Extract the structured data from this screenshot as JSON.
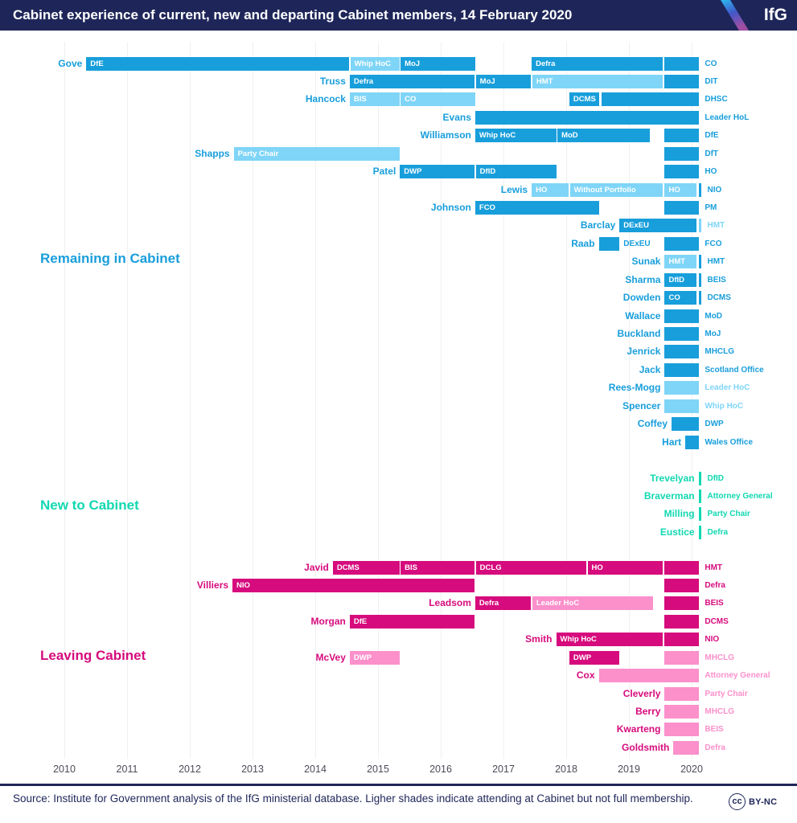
{
  "header": {
    "title": "Cabinet experience of current, new and departing Cabinet members, 14 February 2020",
    "logo_text": "IfG"
  },
  "footer": {
    "source": "Source: Institute for Government analysis of the IfG ministerial database. Ligher shades indicate attending at Cabinet but not full membership.",
    "cc_label": "cc",
    "license_label": "BY-NC"
  },
  "chart_data": {
    "type": "gantt",
    "title": "Cabinet experience of current, new and departing Cabinet members, 14 February 2020",
    "x_ticks": [
      2010,
      2011,
      2012,
      2013,
      2014,
      2015,
      2016,
      2017,
      2018,
      2019,
      2020
    ],
    "x_range": [
      2010,
      2020.3
    ],
    "grid": true,
    "groups": [
      {
        "name": "Remaining in Cabinet",
        "key": "remaining",
        "colors": {
          "dark": "#189edb",
          "light": "#7fd5f7"
        },
        "rows": [
          {
            "name": "Gove",
            "current": "CO",
            "current_shade": "dark",
            "segments": [
              {
                "label": "DfE",
                "start": 2010.35,
                "end": 2014.54,
                "shade": "dark"
              },
              {
                "label": "Whip HoC",
                "start": 2014.56,
                "end": 2015.34,
                "shade": "light"
              },
              {
                "label": "MoJ",
                "start": 2015.36,
                "end": 2016.55,
                "shade": "dark"
              },
              {
                "label": "Defra",
                "start": 2017.45,
                "end": 2019.54,
                "shade": "dark"
              },
              {
                "label": "",
                "start": 2019.57,
                "end": 2020.12,
                "shade": "dark"
              }
            ]
          },
          {
            "name": "Truss",
            "current": "DIT",
            "current_shade": "dark",
            "segments": [
              {
                "label": "Defra",
                "start": 2014.55,
                "end": 2016.54,
                "shade": "dark"
              },
              {
                "label": "MoJ",
                "start": 2016.56,
                "end": 2017.44,
                "shade": "dark"
              },
              {
                "label": "HMT",
                "start": 2017.46,
                "end": 2019.54,
                "shade": "light"
              },
              {
                "label": "",
                "start": 2019.57,
                "end": 2020.12,
                "shade": "dark"
              }
            ]
          },
          {
            "name": "Hancock",
            "current": "DHSC",
            "current_shade": "dark",
            "segments": [
              {
                "label": "BIS",
                "start": 2014.55,
                "end": 2015.34,
                "shade": "light"
              },
              {
                "label": "CO",
                "start": 2015.36,
                "end": 2016.55,
                "shade": "light"
              },
              {
                "label": "DCMS",
                "start": 2018.05,
                "end": 2018.53,
                "shade": "dark"
              },
              {
                "label": "",
                "start": 2018.56,
                "end": 2020.12,
                "shade": "dark"
              }
            ]
          },
          {
            "name": "Evans",
            "current": "Leader HoL",
            "current_shade": "dark",
            "segments": [
              {
                "label": "",
                "start": 2016.55,
                "end": 2020.12,
                "shade": "dark"
              }
            ]
          },
          {
            "name": "Williamson",
            "current": "DfE",
            "current_shade": "dark",
            "segments": [
              {
                "label": "Whip HoC",
                "start": 2016.55,
                "end": 2017.84,
                "shade": "dark"
              },
              {
                "label": "MoD",
                "start": 2017.86,
                "end": 2019.33,
                "shade": "dark"
              },
              {
                "label": "",
                "start": 2019.57,
                "end": 2020.12,
                "shade": "dark"
              }
            ]
          },
          {
            "name": "Shapps",
            "current": "DfT",
            "current_shade": "dark",
            "segments": [
              {
                "label": "Party Chair",
                "start": 2012.7,
                "end": 2015.34,
                "shade": "light"
              },
              {
                "label": "",
                "start": 2019.57,
                "end": 2020.12,
                "shade": "dark"
              }
            ]
          },
          {
            "name": "Patel",
            "current": "HO",
            "current_shade": "dark",
            "segments": [
              {
                "label": "DWP",
                "start": 2015.35,
                "end": 2016.54,
                "shade": "dark"
              },
              {
                "label": "DfID",
                "start": 2016.56,
                "end": 2017.84,
                "shade": "dark"
              },
              {
                "label": "",
                "start": 2019.57,
                "end": 2020.12,
                "shade": "dark"
              }
            ]
          },
          {
            "name": "Lewis",
            "current": "NIO",
            "current_shade": "dark",
            "segments": [
              {
                "label": "HO",
                "start": 2017.45,
                "end": 2018.04,
                "shade": "light"
              },
              {
                "label": "Without Portfolio",
                "start": 2018.06,
                "end": 2019.54,
                "shade": "light"
              },
              {
                "label": "HO",
                "start": 2019.57,
                "end": 2020.08,
                "shade": "light"
              },
              {
                "label": "",
                "start": 2020.11,
                "end": 2020.16,
                "shade": "dark"
              }
            ]
          },
          {
            "name": "Johnson",
            "current": "PM",
            "current_shade": "dark",
            "segments": [
              {
                "label": "FCO",
                "start": 2016.55,
                "end": 2018.52,
                "shade": "dark"
              },
              {
                "label": "",
                "start": 2019.57,
                "end": 2020.12,
                "shade": "dark"
              }
            ]
          },
          {
            "name": "Barclay",
            "current": "HMT",
            "current_shade": "light",
            "segments": [
              {
                "label": "DExEU",
                "start": 2018.85,
                "end": 2020.08,
                "shade": "dark"
              },
              {
                "label": "",
                "start": 2020.11,
                "end": 2020.16,
                "shade": "light"
              }
            ]
          },
          {
            "name": "Raab",
            "current": "FCO",
            "current_shade": "dark",
            "segments": [
              {
                "label": "DExEU",
                "start": 2018.52,
                "end": 2018.85,
                "shade": "dark",
                "label_outside": true
              },
              {
                "label": "",
                "start": 2019.57,
                "end": 2020.12,
                "shade": "dark"
              }
            ]
          },
          {
            "name": "Sunak",
            "current": "HMT",
            "current_shade": "dark",
            "segments": [
              {
                "label": "HMT",
                "start": 2019.57,
                "end": 2020.08,
                "shade": "light"
              },
              {
                "label": "",
                "start": 2020.11,
                "end": 2020.16,
                "shade": "dark"
              }
            ]
          },
          {
            "name": "Sharma",
            "current": "BEIS",
            "current_shade": "dark",
            "segments": [
              {
                "label": "DfID",
                "start": 2019.57,
                "end": 2020.08,
                "shade": "dark"
              },
              {
                "label": "",
                "start": 2020.11,
                "end": 2020.16,
                "shade": "dark"
              }
            ]
          },
          {
            "name": "Dowden",
            "current": "DCMS",
            "current_shade": "dark",
            "segments": [
              {
                "label": "CO",
                "start": 2019.57,
                "end": 2020.08,
                "shade": "dark"
              },
              {
                "label": "",
                "start": 2020.11,
                "end": 2020.16,
                "shade": "dark"
              }
            ]
          },
          {
            "name": "Wallace",
            "current": "MoD",
            "current_shade": "dark",
            "segments": [
              {
                "label": "",
                "start": 2019.57,
                "end": 2020.12,
                "shade": "dark"
              }
            ]
          },
          {
            "name": "Buckland",
            "current": "MoJ",
            "current_shade": "dark",
            "segments": [
              {
                "label": "",
                "start": 2019.57,
                "end": 2020.12,
                "shade": "dark"
              }
            ]
          },
          {
            "name": "Jenrick",
            "current": "MHCLG",
            "current_shade": "dark",
            "segments": [
              {
                "label": "",
                "start": 2019.57,
                "end": 2020.12,
                "shade": "dark"
              }
            ]
          },
          {
            "name": "Jack",
            "current": "Scotland Office",
            "current_shade": "dark",
            "segments": [
              {
                "label": "",
                "start": 2019.57,
                "end": 2020.12,
                "shade": "dark"
              }
            ]
          },
          {
            "name": "Rees-Mogg",
            "current": "Leader HoC",
            "current_shade": "light",
            "segments": [
              {
                "label": "",
                "start": 2019.57,
                "end": 2020.12,
                "shade": "light"
              }
            ]
          },
          {
            "name": "Spencer",
            "current": "Whip HoC",
            "current_shade": "light",
            "segments": [
              {
                "label": "",
                "start": 2019.57,
                "end": 2020.12,
                "shade": "light"
              }
            ]
          },
          {
            "name": "Coffey",
            "current": "DWP",
            "current_shade": "dark",
            "segments": [
              {
                "label": "",
                "start": 2019.68,
                "end": 2020.12,
                "shade": "dark"
              }
            ]
          },
          {
            "name": "Hart",
            "current": "Wales Office",
            "current_shade": "dark",
            "segments": [
              {
                "label": "",
                "start": 2019.9,
                "end": 2020.12,
                "shade": "dark"
              }
            ]
          }
        ]
      },
      {
        "name": "New to Cabinet",
        "key": "new",
        "colors": {
          "dark": "#12d8b1"
        },
        "rows": [
          {
            "name": "Trevelyan",
            "current": "DfID",
            "current_shade": "dark",
            "segments": [
              {
                "label": "",
                "start": 2020.11,
                "end": 2020.16,
                "shade": "dark"
              }
            ]
          },
          {
            "name": "Braverman",
            "current": "Attorney General",
            "current_shade": "dark",
            "segments": [
              {
                "label": "",
                "start": 2020.11,
                "end": 2020.16,
                "shade": "dark"
              }
            ]
          },
          {
            "name": "Milling",
            "current": "Party Chair",
            "current_shade": "dark",
            "segments": [
              {
                "label": "",
                "start": 2020.11,
                "end": 2020.16,
                "shade": "dark"
              }
            ]
          },
          {
            "name": "Eustice",
            "current": "Defra",
            "current_shade": "dark",
            "segments": [
              {
                "label": "",
                "start": 2020.11,
                "end": 2020.16,
                "shade": "dark"
              }
            ]
          }
        ]
      },
      {
        "name": "Leaving Cabinet",
        "key": "leaving",
        "colors": {
          "dark": "#d60b7d",
          "light": "#fb90cb"
        },
        "rows": [
          {
            "name": "Javid",
            "current": "HMT",
            "current_shade": "dark",
            "segments": [
              {
                "label": "DCMS",
                "start": 2014.28,
                "end": 2015.34,
                "shade": "dark"
              },
              {
                "label": "BIS",
                "start": 2015.36,
                "end": 2016.54,
                "shade": "dark"
              },
              {
                "label": "DCLG",
                "start": 2016.56,
                "end": 2018.32,
                "shade": "dark"
              },
              {
                "label": "HO",
                "start": 2018.34,
                "end": 2019.54,
                "shade": "dark"
              },
              {
                "label": "",
                "start": 2019.57,
                "end": 2020.12,
                "shade": "dark"
              }
            ]
          },
          {
            "name": "Villiers",
            "current": "Defra",
            "current_shade": "dark",
            "segments": [
              {
                "label": "NIO",
                "start": 2012.68,
                "end": 2016.54,
                "shade": "dark"
              },
              {
                "label": "",
                "start": 2019.57,
                "end": 2020.12,
                "shade": "dark"
              }
            ]
          },
          {
            "name": "Leadsom",
            "current": "BEIS",
            "current_shade": "dark",
            "segments": [
              {
                "label": "Defra",
                "start": 2016.55,
                "end": 2017.44,
                "shade": "dark"
              },
              {
                "label": "Leader HoC",
                "start": 2017.46,
                "end": 2019.38,
                "shade": "light"
              },
              {
                "label": "",
                "start": 2019.57,
                "end": 2020.12,
                "shade": "dark"
              }
            ]
          },
          {
            "name": "Morgan",
            "current": "DCMS",
            "current_shade": "dark",
            "segments": [
              {
                "label": "DfE",
                "start": 2014.55,
                "end": 2016.54,
                "shade": "dark"
              },
              {
                "label": "",
                "start": 2019.57,
                "end": 2020.12,
                "shade": "dark"
              }
            ]
          },
          {
            "name": "Smith",
            "current": "NIO",
            "current_shade": "dark",
            "segments": [
              {
                "label": "Whip HoC",
                "start": 2017.84,
                "end": 2019.54,
                "shade": "dark"
              },
              {
                "label": "",
                "start": 2019.57,
                "end": 2020.12,
                "shade": "dark"
              }
            ]
          },
          {
            "name": "McVey",
            "current": "MHCLG",
            "current_shade": "light",
            "segments": [
              {
                "label": "DWP",
                "start": 2014.55,
                "end": 2015.34,
                "shade": "light"
              },
              {
                "label": "DWP",
                "start": 2018.05,
                "end": 2018.85,
                "shade": "dark"
              },
              {
                "label": "",
                "start": 2019.57,
                "end": 2020.12,
                "shade": "light"
              }
            ]
          },
          {
            "name": "Cox",
            "current": "Attorney General",
            "current_shade": "light",
            "segments": [
              {
                "label": "",
                "start": 2018.52,
                "end": 2020.12,
                "shade": "light"
              }
            ]
          },
          {
            "name": "Cleverly",
            "current": "Party Chair",
            "current_shade": "light",
            "segments": [
              {
                "label": "",
                "start": 2019.57,
                "end": 2020.12,
                "shade": "light"
              }
            ]
          },
          {
            "name": "Berry",
            "current": "MHCLG",
            "current_shade": "light",
            "segments": [
              {
                "label": "",
                "start": 2019.57,
                "end": 2020.12,
                "shade": "light"
              }
            ]
          },
          {
            "name": "Kwarteng",
            "current": "BEIS",
            "current_shade": "light",
            "segments": [
              {
                "label": "",
                "start": 2019.57,
                "end": 2020.12,
                "shade": "light"
              }
            ]
          },
          {
            "name": "Goldsmith",
            "current": "Defra",
            "current_shade": "light",
            "segments": [
              {
                "label": "",
                "start": 2019.71,
                "end": 2020.12,
                "shade": "light"
              }
            ]
          }
        ]
      }
    ]
  }
}
